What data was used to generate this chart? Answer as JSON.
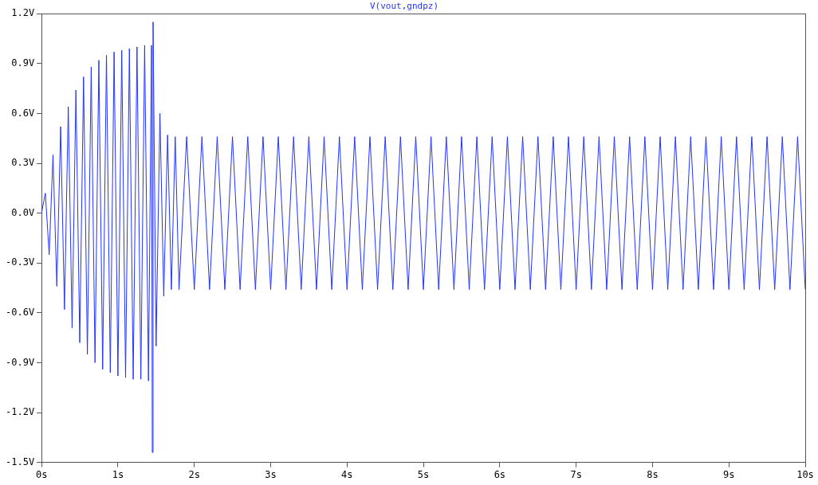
{
  "chart_data": {
    "type": "line",
    "title": "V(vout,gndpz)",
    "xlim": [
      0,
      10
    ],
    "xticks": [
      {
        "value": 0,
        "label": "0s"
      },
      {
        "value": 1,
        "label": "1s"
      },
      {
        "value": 2,
        "label": "2s"
      },
      {
        "value": 3,
        "label": "3s"
      },
      {
        "value": 4,
        "label": "4s"
      },
      {
        "value": 5,
        "label": "5s"
      },
      {
        "value": 6,
        "label": "6s"
      },
      {
        "value": 7,
        "label": "7s"
      },
      {
        "value": 8,
        "label": "8s"
      },
      {
        "value": 9,
        "label": "9s"
      },
      {
        "value": 10,
        "label": "10s"
      }
    ],
    "ylim": [
      -1.5,
      1.2
    ],
    "yticks": [
      {
        "value": -1.5,
        "label": "-1.5V"
      },
      {
        "value": -1.2,
        "label": "-1.2V"
      },
      {
        "value": -0.9,
        "label": "-0.9V"
      },
      {
        "value": -0.6,
        "label": "-0.6V"
      },
      {
        "value": -0.3,
        "label": "-0.3V"
      },
      {
        "value": 0,
        "label": "0.0V"
      },
      {
        "value": 0.3,
        "label": "0.3V"
      },
      {
        "value": 0.6,
        "label": "0.6V"
      },
      {
        "value": 0.9,
        "label": "0.9V"
      },
      {
        "value": 1.2,
        "label": "1.2V"
      }
    ],
    "grid": false,
    "legend": false,
    "x": [
      0,
      0.05,
      0.1,
      0.15,
      0.2,
      0.25,
      0.3,
      0.35,
      0.4,
      0.45,
      0.5,
      0.55,
      0.6,
      0.65,
      0.7,
      0.75,
      0.8,
      0.85,
      0.9,
      0.95,
      1.0,
      1.05,
      1.1,
      1.15,
      1.2,
      1.25,
      1.3,
      1.35,
      1.4,
      1.44,
      1.45,
      1.46,
      1.5,
      1.55,
      1.6,
      1.65,
      1.7,
      1.75,
      1.8,
      1.9,
      2.0,
      2.1,
      2.2,
      2.3,
      2.4,
      2.5,
      2.6,
      2.7,
      2.8,
      2.9,
      3.0,
      3.1,
      3.2,
      3.3,
      3.4,
      3.5,
      3.6,
      3.7,
      3.8,
      3.9,
      4.0,
      4.1,
      4.2,
      4.3,
      4.4,
      4.5,
      4.6,
      4.7,
      4.8,
      4.9,
      5.0,
      5.1,
      5.2,
      5.3,
      5.4,
      5.5,
      5.6,
      5.7,
      5.8,
      5.9,
      6.0,
      6.1,
      6.2,
      6.3,
      6.4,
      6.5,
      6.6,
      6.7,
      6.8,
      6.9,
      7.0,
      7.1,
      7.2,
      7.3,
      7.4,
      7.5,
      7.6,
      7.7,
      7.8,
      7.9,
      8.0,
      8.1,
      8.2,
      8.3,
      8.4,
      8.5,
      8.6,
      8.7,
      8.8,
      8.9,
      9.0,
      9.1,
      9.2,
      9.3,
      9.4,
      9.5,
      9.6,
      9.7,
      9.8,
      9.9,
      10.0
    ],
    "series": [
      {
        "color": "#2233ff",
        "values": [
          0,
          0.12,
          -0.25,
          0.35,
          -0.44,
          0.52,
          -0.58,
          0.64,
          -0.69,
          0.74,
          -0.78,
          0.82,
          -0.85,
          0.88,
          -0.9,
          0.92,
          -0.94,
          0.95,
          -0.96,
          0.97,
          -0.98,
          0.98,
          -0.99,
          0.99,
          -1.0,
          1.0,
          -1.0,
          1.01,
          -1.01,
          1.01,
          -1.44,
          1.15,
          -0.8,
          0.6,
          -0.5,
          0.47,
          -0.46,
          0.46,
          -0.46,
          0.46,
          -0.46,
          0.46,
          -0.46,
          0.46,
          -0.46,
          0.46,
          -0.46,
          0.46,
          -0.46,
          0.46,
          -0.46,
          0.46,
          -0.46,
          0.46,
          -0.46,
          0.46,
          -0.46,
          0.46,
          -0.46,
          0.46,
          -0.46,
          0.46,
          -0.46,
          0.46,
          -0.46,
          0.46,
          -0.46,
          0.46,
          -0.46,
          0.46,
          -0.46,
          0.46,
          -0.46,
          0.46,
          -0.46,
          0.46,
          -0.46,
          0.46,
          -0.46,
          0.46,
          -0.46,
          0.46,
          -0.46,
          0.46,
          -0.46,
          0.46,
          -0.46,
          0.46,
          -0.46,
          0.46,
          -0.46,
          0.46,
          -0.46,
          0.46,
          -0.46,
          0.46,
          -0.46,
          0.46,
          -0.46,
          0.46,
          -0.46,
          0.46,
          -0.46,
          0.46,
          -0.46,
          0.46,
          -0.46,
          0.46,
          -0.46,
          0.46,
          -0.46,
          0.46,
          -0.46,
          0.46,
          -0.46,
          0.46,
          -0.46,
          0.46,
          -0.46,
          0.46,
          -0.46
        ]
      }
    ]
  }
}
